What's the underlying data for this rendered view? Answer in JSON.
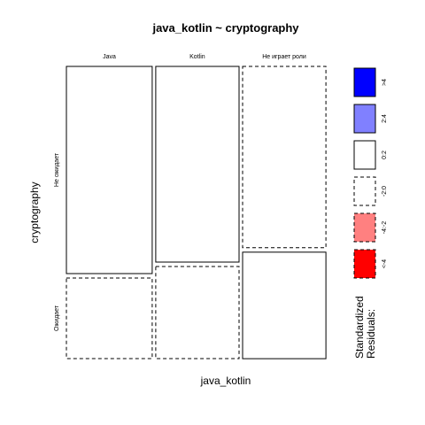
{
  "chart_data": {
    "type": "mosaic",
    "title": "java_kotlin ~ cryptography",
    "xlabel": "java_kotlin",
    "ylabel": "cryptography",
    "x_categories": [
      "Java",
      "Kotlin",
      "Не играет роли"
    ],
    "y_categories": [
      "Не ожидает",
      "Ожидает"
    ],
    "column_proportions": [
      0.34,
      0.33,
      0.33
    ],
    "cells": [
      {
        "x": "Java",
        "y": "Не ожидает",
        "proportion": 0.72,
        "residual_class": "0:2"
      },
      {
        "x": "Java",
        "y": "Ожидает",
        "proportion": 0.28,
        "residual_class": "-2:0"
      },
      {
        "x": "Kotlin",
        "y": "Не ожидает",
        "proportion": 0.68,
        "residual_class": "0:2"
      },
      {
        "x": "Kotlin",
        "y": "Ожидает",
        "proportion": 0.32,
        "residual_class": "-2:0"
      },
      {
        "x": "Не играет роли",
        "y": "Не ожидает",
        "proportion": 0.63,
        "residual_class": "-2:0"
      },
      {
        "x": "Не играет роли",
        "y": "Ожидает",
        "proportion": 0.37,
        "residual_class": "0:2"
      }
    ],
    "legend": {
      "title_line1": "Standardized",
      "title_line2": "Residuals:",
      "items": [
        {
          "label": ">4",
          "fill": "#0000ff",
          "dashed": false
        },
        {
          "label": "2:4",
          "fill": "#8080ff",
          "dashed": false
        },
        {
          "label": "0:2",
          "fill": "#ffffff",
          "dashed": false
        },
        {
          "label": "-2:0",
          "fill": "#ffffff",
          "dashed": true
        },
        {
          "label": "-4:-2",
          "fill": "#ff8080",
          "dashed": true
        },
        {
          "label": "<-4",
          "fill": "#ff0000",
          "dashed": true
        }
      ]
    }
  }
}
